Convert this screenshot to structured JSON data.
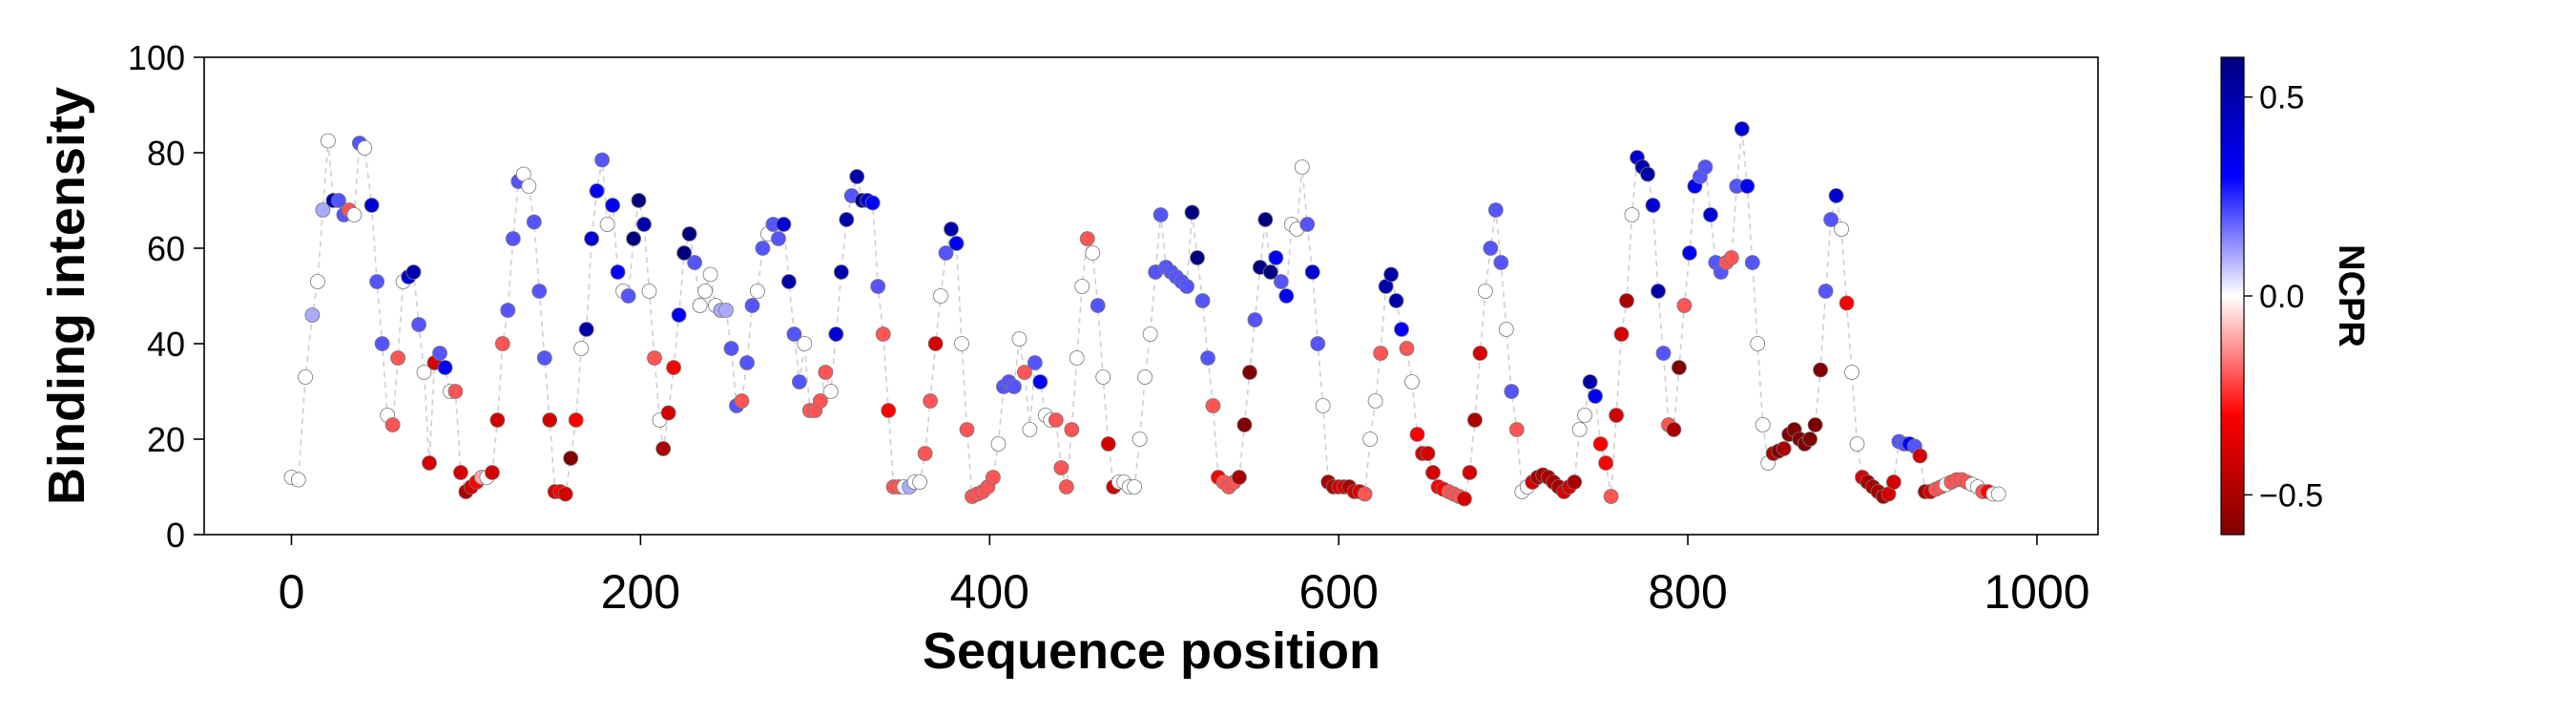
{
  "chart_data": {
    "type": "scatter",
    "title": "",
    "xlabel": "Sequence position",
    "ylabel": "Binding intensity",
    "xlim": [
      -50,
      1035
    ],
    "ylim": [
      0,
      100
    ],
    "xticks": [
      0,
      200,
      400,
      600,
      800,
      1000
    ],
    "yticks": [
      0,
      20,
      40,
      60,
      80,
      100
    ],
    "xtick_labels": [
      "0",
      "200",
      "400",
      "600",
      "800",
      "1000"
    ],
    "ytick_labels": [
      "0",
      "20",
      "40",
      "60",
      "80",
      "100"
    ],
    "grid": false,
    "connector": "dashed light-gray line joining consecutive points",
    "colorbar": {
      "label": "NCPR",
      "cmap": "seismic_r",
      "vmin": -0.6,
      "vmax": 0.6,
      "ticks": [
        -0.5,
        0.0,
        0.5
      ],
      "tick_labels": [
        "−0.5",
        "0.0",
        "0.5"
      ],
      "colors": {
        "low": "#800000",
        "neg": "#ff0000",
        "mid": "#ffffff",
        "pos": "#0000ff",
        "high": "#000080"
      }
    },
    "points": [
      [
        0,
        12,
        0
      ],
      [
        4,
        11.5,
        0
      ],
      [
        8,
        33,
        0
      ],
      [
        12,
        46,
        0.1
      ],
      [
        15,
        53,
        0
      ],
      [
        18,
        68,
        0.1
      ],
      [
        21,
        82.5,
        0
      ],
      [
        24,
        70,
        0.5
      ],
      [
        27,
        70,
        0.2
      ],
      [
        30,
        67,
        0.2
      ],
      [
        33,
        68,
        -0.2
      ],
      [
        36,
        67,
        0
      ],
      [
        39,
        82,
        0.2
      ],
      [
        42,
        81,
        0
      ],
      [
        46,
        69,
        0.4
      ],
      [
        49,
        53,
        0.2
      ],
      [
        52,
        40,
        0.2
      ],
      [
        55,
        25,
        0
      ],
      [
        58,
        23,
        -0.2
      ],
      [
        61,
        37,
        -0.2
      ],
      [
        64,
        53,
        0
      ],
      [
        67,
        54,
        0.4
      ],
      [
        70,
        55,
        0.5
      ],
      [
        73,
        44,
        0.2
      ],
      [
        76,
        34,
        0
      ],
      [
        79,
        15,
        -0.4
      ],
      [
        82,
        36,
        -0.4
      ],
      [
        85,
        38,
        0.2
      ],
      [
        88,
        35,
        0.3
      ],
      [
        91,
        30,
        0
      ],
      [
        94,
        30,
        -0.2
      ],
      [
        97,
        13,
        -0.4
      ],
      [
        100,
        9,
        -0.5
      ],
      [
        103,
        10,
        -0.4
      ],
      [
        106,
        11,
        -0.3
      ],
      [
        109,
        12,
        -0.1
      ],
      [
        112,
        12,
        0
      ],
      [
        115,
        13,
        -0.4
      ],
      [
        118,
        24,
        -0.4
      ],
      [
        121,
        40,
        -0.2
      ],
      [
        124,
        47,
        0.2
      ],
      [
        127,
        62,
        0.2
      ],
      [
        130,
        74,
        0.2
      ],
      [
        133,
        75.5,
        0
      ],
      [
        136,
        73,
        0
      ],
      [
        139,
        65.5,
        0.2
      ],
      [
        142,
        51,
        0.2
      ],
      [
        145,
        37,
        0.2
      ],
      [
        148,
        24,
        -0.4
      ],
      [
        151,
        9,
        -0.4
      ],
      [
        154,
        9,
        -0.3
      ],
      [
        157,
        8.5,
        -0.4
      ],
      [
        160,
        16,
        -0.6
      ],
      [
        163,
        24,
        -0.3
      ],
      [
        166,
        39,
        0
      ],
      [
        169,
        43,
        0.5
      ],
      [
        172,
        62,
        0.4
      ],
      [
        175,
        72,
        0.3
      ],
      [
        178,
        78.5,
        0.2
      ],
      [
        181,
        65,
        0
      ],
      [
        184,
        69,
        0.3
      ],
      [
        187,
        55,
        0.3
      ],
      [
        190,
        51,
        0
      ],
      [
        193,
        50,
        0.2
      ],
      [
        196,
        62,
        0.6
      ],
      [
        199,
        70,
        0.6
      ],
      [
        202,
        65,
        0.5
      ],
      [
        205,
        51,
        0
      ],
      [
        208,
        37,
        -0.2
      ],
      [
        211,
        24,
        0
      ],
      [
        213,
        18,
        -0.5
      ],
      [
        216,
        25.5,
        -0.4
      ],
      [
        219,
        35,
        -0.3
      ],
      [
        222,
        46,
        0.3
      ],
      [
        225,
        59,
        0.6
      ],
      [
        228,
        63,
        0.6
      ],
      [
        231,
        57,
        0.2
      ],
      [
        234,
        48,
        0
      ],
      [
        237,
        51,
        0
      ],
      [
        240,
        54.5,
        0
      ],
      [
        243,
        48,
        0
      ],
      [
        246,
        47,
        0.1
      ],
      [
        249,
        47,
        0.1
      ],
      [
        252,
        39,
        0.2
      ],
      [
        255,
        27,
        0.2
      ],
      [
        258,
        28,
        -0.2
      ],
      [
        261,
        36,
        0.2
      ],
      [
        264,
        48,
        0.2
      ],
      [
        267,
        51,
        0
      ],
      [
        270,
        60,
        0.2
      ],
      [
        273,
        63,
        0
      ],
      [
        276,
        65,
        0.2
      ],
      [
        279,
        62,
        0.2
      ],
      [
        282,
        65,
        0.4
      ],
      [
        285,
        53,
        0.5
      ],
      [
        288,
        42,
        0.2
      ],
      [
        291,
        32,
        0.2
      ],
      [
        294,
        40,
        0
      ],
      [
        297,
        26,
        -0.2
      ],
      [
        300,
        26,
        -0.2
      ],
      [
        303,
        28,
        -0.2
      ],
      [
        306,
        34,
        -0.2
      ],
      [
        309,
        30,
        0
      ],
      [
        312,
        42,
        0.4
      ],
      [
        315,
        55,
        0.5
      ],
      [
        318,
        66,
        0.5
      ],
      [
        321,
        71,
        0.2
      ],
      [
        324,
        75,
        0.5
      ],
      [
        327,
        70,
        0.6
      ],
      [
        330,
        70,
        0.4
      ],
      [
        333,
        69.5,
        0.3
      ],
      [
        336,
        52,
        0.2
      ],
      [
        339,
        42,
        -0.2
      ],
      [
        342,
        26,
        -0.3
      ],
      [
        345,
        10,
        -0.2
      ],
      [
        348,
        10,
        -0.2
      ],
      [
        351,
        10,
        0
      ],
      [
        354,
        10,
        0.1
      ],
      [
        357,
        11,
        0
      ],
      [
        360,
        11,
        0
      ],
      [
        363,
        17,
        -0.2
      ],
      [
        366,
        28,
        -0.2
      ],
      [
        369,
        40,
        -0.4
      ],
      [
        372,
        50,
        0
      ],
      [
        375,
        59,
        0.2
      ],
      [
        378,
        64,
        0.5
      ],
      [
        381,
        61,
        0.3
      ],
      [
        384,
        40,
        0
      ],
      [
        387,
        22,
        -0.2
      ],
      [
        390,
        8,
        -0.2
      ],
      [
        393,
        8.5,
        -0.2
      ],
      [
        396,
        9,
        -0.2
      ],
      [
        399,
        10,
        -0.2
      ],
      [
        402,
        12,
        -0.2
      ],
      [
        405,
        19,
        0
      ],
      [
        408,
        31,
        0.2
      ],
      [
        411,
        32,
        0.2
      ],
      [
        414,
        31,
        0.2
      ],
      [
        417,
        41,
        0
      ],
      [
        420,
        34,
        -0.2
      ],
      [
        423,
        22,
        0
      ],
      [
        426,
        36,
        0.2
      ],
      [
        429,
        32,
        0.3
      ],
      [
        432,
        25,
        0
      ],
      [
        435,
        24,
        0
      ],
      [
        438,
        24,
        -0.2
      ],
      [
        441,
        14,
        -0.2
      ],
      [
        444,
        10,
        -0.2
      ],
      [
        447,
        22,
        -0.2
      ],
      [
        450,
        37,
        0
      ],
      [
        453,
        52,
        0
      ],
      [
        456,
        62,
        -0.2
      ],
      [
        459,
        59,
        0
      ],
      [
        462,
        48,
        0.2
      ],
      [
        465,
        33,
        0
      ],
      [
        468,
        19,
        -0.4
      ],
      [
        471,
        10,
        -0.4
      ],
      [
        474,
        11,
        0
      ],
      [
        477,
        11,
        0
      ],
      [
        480,
        10,
        0
      ],
      [
        483,
        10,
        0
      ],
      [
        486,
        20,
        0
      ],
      [
        489,
        33,
        0
      ],
      [
        492,
        42,
        0
      ],
      [
        495,
        55,
        0.2
      ],
      [
        498,
        67,
        0.2
      ],
      [
        501,
        56,
        0.2
      ],
      [
        504,
        55,
        0.2
      ],
      [
        507,
        54,
        0.2
      ],
      [
        510,
        53,
        0.2
      ],
      [
        513,
        52,
        0.2
      ],
      [
        516,
        67.5,
        0.6
      ],
      [
        519,
        58,
        0.6
      ],
      [
        522,
        49,
        0.2
      ],
      [
        525,
        37,
        0.2
      ],
      [
        528,
        27,
        -0.2
      ],
      [
        531,
        12,
        -0.3
      ],
      [
        534,
        11,
        -0.2
      ],
      [
        537,
        10,
        -0.2
      ],
      [
        540,
        11,
        -0.2
      ],
      [
        543,
        12,
        -0.5
      ],
      [
        546,
        23,
        -0.6
      ],
      [
        549,
        34,
        -0.6
      ],
      [
        552,
        45,
        0.2
      ],
      [
        555,
        56,
        0.6
      ],
      [
        558,
        66,
        0.7
      ],
      [
        561,
        55,
        0.6
      ],
      [
        564,
        58,
        0.3
      ],
      [
        567,
        53,
        0.2
      ],
      [
        570,
        50,
        0.3
      ],
      [
        573,
        65,
        0
      ],
      [
        576,
        64,
        0
      ],
      [
        579,
        77,
        0
      ],
      [
        582,
        65,
        0.2
      ],
      [
        585,
        55,
        0.4
      ],
      [
        588,
        40,
        0.2
      ],
      [
        591,
        27,
        0
      ],
      [
        594,
        11,
        -0.5
      ],
      [
        597,
        10,
        -0.5
      ],
      [
        600,
        10,
        -0.4
      ],
      [
        603,
        10,
        -0.4
      ],
      [
        606,
        10,
        -0.5
      ],
      [
        609,
        9,
        -0.4
      ],
      [
        612,
        9,
        -0.4
      ],
      [
        615,
        8.5,
        -0.2
      ],
      [
        618,
        20,
        0
      ],
      [
        621,
        28,
        0
      ],
      [
        624,
        38,
        -0.2
      ],
      [
        627,
        52,
        0.5
      ],
      [
        630,
        54.5,
        0.5
      ],
      [
        633,
        49,
        0.5
      ],
      [
        636,
        43,
        0.3
      ],
      [
        639,
        39,
        -0.2
      ],
      [
        642,
        32,
        0
      ],
      [
        645,
        21,
        -0.3
      ],
      [
        648,
        17,
        -0.4
      ],
      [
        651,
        17,
        -0.4
      ],
      [
        654,
        13,
        -0.4
      ],
      [
        657,
        10,
        -0.3
      ],
      [
        660,
        9.5,
        -0.3
      ],
      [
        663,
        9,
        -0.2
      ],
      [
        666,
        8.5,
        -0.2
      ],
      [
        669,
        8,
        -0.2
      ],
      [
        672,
        7.5,
        -0.4
      ],
      [
        675,
        13,
        -0.4
      ],
      [
        678,
        24,
        -0.5
      ],
      [
        681,
        38,
        -0.4
      ],
      [
        684,
        51,
        0
      ],
      [
        687,
        60,
        0.2
      ],
      [
        690,
        68,
        0.2
      ],
      [
        693,
        57,
        0.2
      ],
      [
        696,
        43,
        0
      ],
      [
        699,
        30,
        0.2
      ],
      [
        702,
        22,
        -0.2
      ],
      [
        705,
        9,
        0
      ],
      [
        708,
        10,
        0
      ],
      [
        711,
        11,
        -0.4
      ],
      [
        714,
        12,
        -0.5
      ],
      [
        717,
        12.5,
        -0.5
      ],
      [
        720,
        12,
        -0.5
      ],
      [
        723,
        11,
        -0.5
      ],
      [
        726,
        10,
        -0.5
      ],
      [
        729,
        9,
        -0.4
      ],
      [
        732,
        10,
        -0.4
      ],
      [
        735,
        11,
        -0.5
      ],
      [
        738,
        22,
        0
      ],
      [
        741,
        25,
        0
      ],
      [
        744,
        32,
        0.5
      ],
      [
        747,
        29,
        0.3
      ],
      [
        750,
        19,
        -0.3
      ],
      [
        753,
        15,
        -0.3
      ],
      [
        756,
        8,
        -0.2
      ],
      [
        759,
        25,
        -0.4
      ],
      [
        762,
        42,
        -0.4
      ],
      [
        765,
        49,
        -0.5
      ],
      [
        768,
        67,
        0
      ],
      [
        771,
        79,
        0.4
      ],
      [
        774,
        77,
        0.5
      ],
      [
        777,
        75.5,
        0.5
      ],
      [
        780,
        69,
        0.4
      ],
      [
        783,
        51,
        0.5
      ],
      [
        786,
        38,
        0.2
      ],
      [
        789,
        23,
        -0.2
      ],
      [
        792,
        22,
        -0.5
      ],
      [
        795,
        35,
        -0.6
      ],
      [
        798,
        48,
        -0.2
      ],
      [
        801,
        59,
        0.3
      ],
      [
        804,
        73,
        0.3
      ],
      [
        807,
        75,
        0.2
      ],
      [
        810,
        77,
        0.2
      ],
      [
        813,
        67,
        0.4
      ],
      [
        816,
        57,
        0.2
      ],
      [
        819,
        55,
        0.2
      ],
      [
        822,
        57,
        -0.2
      ],
      [
        825,
        58,
        -0.2
      ],
      [
        828,
        73,
        0.2
      ],
      [
        831,
        85,
        0.4
      ],
      [
        834,
        73,
        0.3
      ],
      [
        837,
        57,
        0.2
      ],
      [
        840,
        40,
        0
      ],
      [
        843,
        23,
        0
      ],
      [
        846,
        15,
        0
      ],
      [
        849,
        17,
        -0.5
      ],
      [
        852,
        17.5,
        -0.6
      ],
      [
        855,
        18,
        -0.5
      ],
      [
        858,
        21,
        -0.6
      ],
      [
        861,
        22,
        -0.7
      ],
      [
        864,
        20,
        -0.7
      ],
      [
        867,
        19,
        -0.7
      ],
      [
        870,
        20,
        -0.7
      ],
      [
        873,
        23,
        -0.7
      ],
      [
        876,
        34.5,
        -0.6
      ],
      [
        879,
        51,
        0.2
      ],
      [
        882,
        66,
        0.2
      ],
      [
        885,
        71,
        0.4
      ],
      [
        888,
        64,
        0
      ],
      [
        891,
        48.5,
        -0.3
      ],
      [
        894,
        34,
        0
      ],
      [
        897,
        19,
        0
      ],
      [
        900,
        12,
        -0.4
      ],
      [
        903,
        11,
        -0.5
      ],
      [
        906,
        10,
        -0.5
      ],
      [
        909,
        9,
        -0.5
      ],
      [
        912,
        8,
        -0.5
      ],
      [
        915,
        8.5,
        -0.4
      ],
      [
        918,
        11,
        -0.4
      ],
      [
        921,
        19.5,
        0.2
      ],
      [
        924,
        19,
        0.2
      ],
      [
        927,
        19,
        0.3
      ],
      [
        930,
        18.5,
        0.2
      ],
      [
        933,
        16.5,
        -0.4
      ],
      [
        936,
        9,
        -0.5
      ],
      [
        939,
        9,
        -0.4
      ],
      [
        942,
        9.5,
        -0.2
      ],
      [
        945,
        10,
        -0.2
      ],
      [
        948,
        10.5,
        0
      ],
      [
        951,
        11,
        -0.2
      ],
      [
        954,
        11.5,
        -0.2
      ],
      [
        957,
        11.5,
        -0.2
      ],
      [
        960,
        11,
        -0.2
      ],
      [
        963,
        10.5,
        0
      ],
      [
        966,
        10,
        0
      ],
      [
        969,
        9,
        -0.2
      ],
      [
        972,
        9,
        -0.3
      ],
      [
        975,
        8.5,
        0
      ],
      [
        978,
        8.5,
        0
      ]
    ]
  }
}
